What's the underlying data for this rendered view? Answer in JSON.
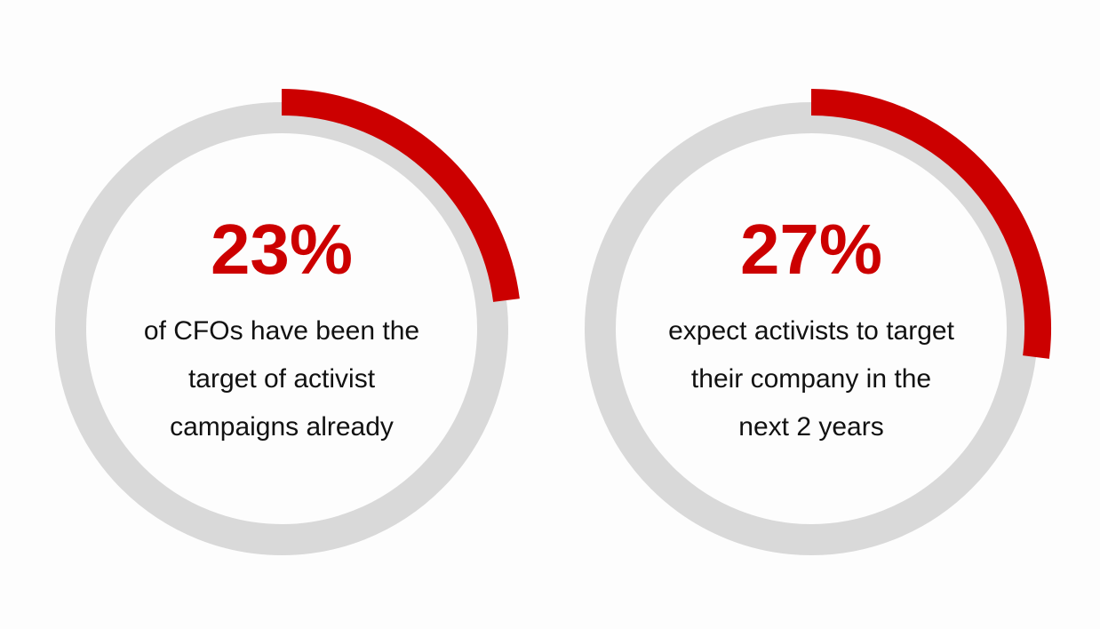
{
  "chart_data": [
    {
      "type": "donut",
      "values": [
        23
      ],
      "value_labels": [
        "23%"
      ],
      "color": "#cc0000",
      "track_color": "#d9d9d9",
      "caption": [
        "of CFOs have been the",
        "target of activist",
        "campaigns already"
      ]
    },
    {
      "type": "donut",
      "values": [
        27
      ],
      "value_labels": [
        "27%"
      ],
      "color": "#cc0000",
      "track_color": "#d9d9d9",
      "caption": [
        "expect activists to target",
        "their company in the",
        "next 2 years"
      ]
    }
  ]
}
